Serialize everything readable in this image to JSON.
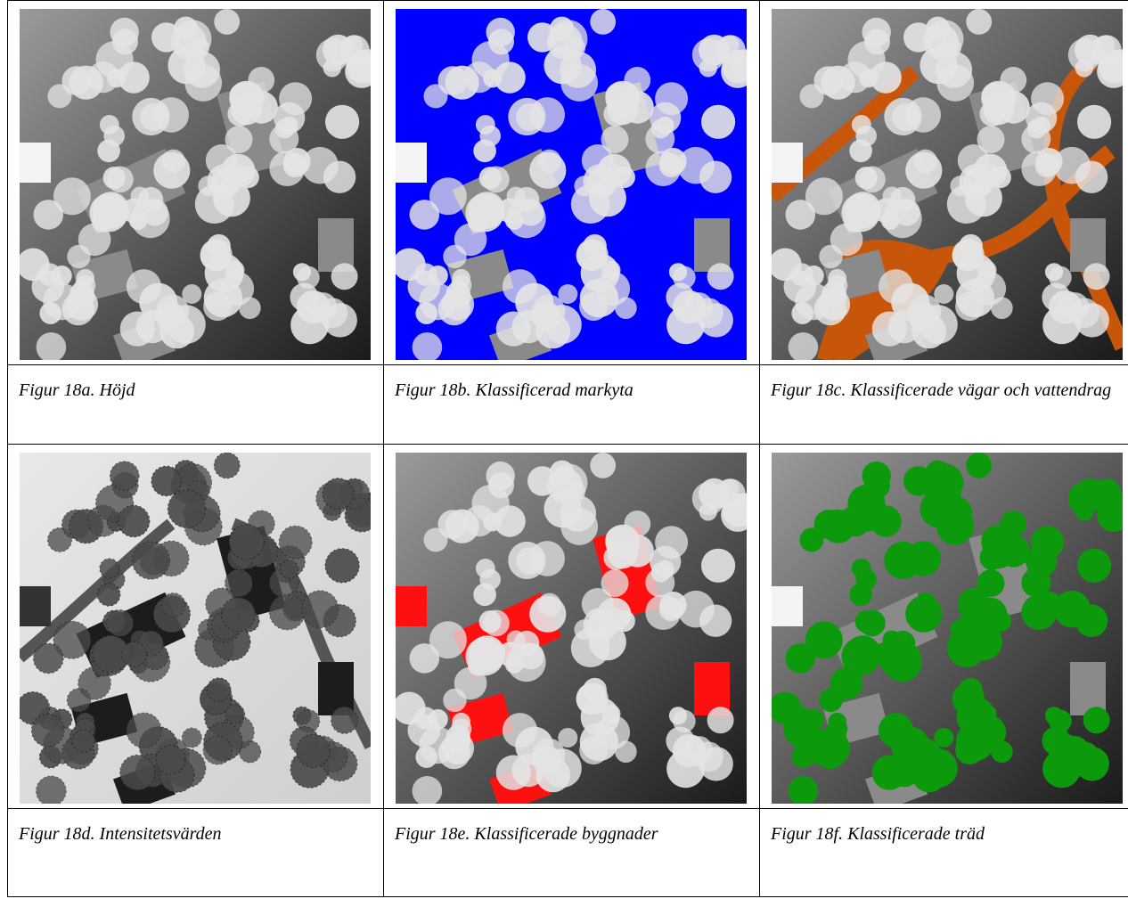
{
  "figures": [
    {
      "caption": "Figur 18a. Höjd"
    },
    {
      "caption": "Figur 18b. Klassificerad markyta"
    },
    {
      "caption": "Figur 18c. Klassificerade vägar och vattendrag"
    },
    {
      "caption": "Figur 18d. Intensitetsvärden"
    },
    {
      "caption": "Figur 18e. Klassificerade byggnader"
    },
    {
      "caption": "Figur 18f. Klassificerade träd"
    }
  ]
}
